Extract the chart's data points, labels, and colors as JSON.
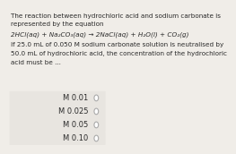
{
  "title_lines": [
    "The reaction between hydrochloric acid and sodium carbonate is",
    "represented by the equation"
  ],
  "equation": "2HCl(aq) + Na₂CO₃(aq) → 2NaCl(aq) + H₂O(l) + CO₂(g)",
  "body_lines": [
    "If 25.0 mL of 0.050 M sodium carbonate solution is neutralised by",
    "50.0 mL of hydrochloric acid, the concentration of the hydrochloric",
    "acid must be ..."
  ],
  "options": [
    "M 0.01",
    "M 0.025",
    "M 0.05",
    "M 0.10"
  ],
  "bg_color": "#f0ede8",
  "option_bg": "#e8e5e0",
  "text_color": "#2a2a2a",
  "circle_color": "#aaaaaa",
  "title_fontsize": 5.2,
  "eq_fontsize": 5.2,
  "body_fontsize": 5.2,
  "option_fontsize": 6.0
}
